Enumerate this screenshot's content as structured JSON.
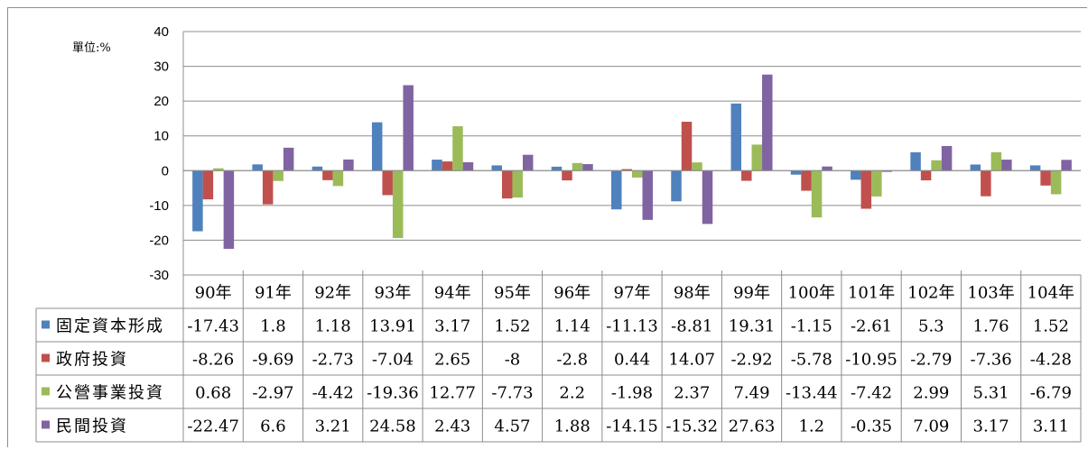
{
  "chart_data": {
    "type": "bar",
    "unit_label": "單位:%",
    "categories": [
      "90年",
      "91年",
      "92年",
      "93年",
      "94年",
      "95年",
      "96年",
      "97年",
      "98年",
      "99年",
      "100年",
      "101年",
      "102年",
      "103年",
      "104年"
    ],
    "ylim": [
      -30,
      40
    ],
    "yticks": [
      "40",
      "30",
      "20",
      "10",
      "0",
      "-10",
      "-20",
      "-30"
    ],
    "ytick_values": [
      40,
      30,
      20,
      10,
      0,
      -10,
      -20,
      -30
    ],
    "grid": true,
    "legend": "data-table-left",
    "series": [
      {
        "name": "固定資本形成",
        "color": "#4f81bd",
        "values": [
          -17.43,
          1.8,
          1.18,
          13.91,
          3.17,
          1.52,
          1.14,
          -11.13,
          -8.81,
          19.31,
          -1.15,
          -2.61,
          5.3,
          1.76,
          1.52
        ],
        "labels": [
          "-17.43",
          "1.8",
          "1.18",
          "13.91",
          "3.17",
          "1.52",
          "1.14",
          "-11.13",
          "-8.81",
          "19.31",
          "-1.15",
          "-2.61",
          "5.3",
          "1.76",
          "1.52"
        ]
      },
      {
        "name": "政府投資",
        "color": "#c0504d",
        "values": [
          -8.26,
          -9.69,
          -2.73,
          -7.04,
          2.65,
          -8,
          -2.8,
          0.44,
          14.07,
          -2.92,
          -5.78,
          -10.95,
          -2.79,
          -7.36,
          -4.28
        ],
        "labels": [
          "-8.26",
          "-9.69",
          "-2.73",
          "-7.04",
          "2.65",
          "-8",
          "-2.8",
          "0.44",
          "14.07",
          "-2.92",
          "-5.78",
          "-10.95",
          "-2.79",
          "-7.36",
          "-4.28"
        ]
      },
      {
        "name": "公營事業投資",
        "color": "#9bbb59",
        "values": [
          0.68,
          -2.97,
          -4.42,
          -19.36,
          12.77,
          -7.73,
          2.2,
          -1.98,
          2.37,
          7.49,
          -13.44,
          -7.42,
          2.99,
          5.31,
          -6.79
        ],
        "labels": [
          "0.68",
          "-2.97",
          "-4.42",
          "-19.36",
          "12.77",
          "-7.73",
          "2.2",
          "-1.98",
          "2.37",
          "7.49",
          "-13.44",
          "-7.42",
          "2.99",
          "5.31",
          "-6.79"
        ]
      },
      {
        "name": "民間投資",
        "color": "#8064a2",
        "values": [
          -22.47,
          6.6,
          3.21,
          24.58,
          2.43,
          4.57,
          1.88,
          -14.15,
          -15.32,
          27.63,
          1.2,
          -0.35,
          7.09,
          3.17,
          3.11
        ],
        "labels": [
          "-22.47",
          "6.6",
          "3.21",
          "24.58",
          "2.43",
          "4.57",
          "1.88",
          "-14.15",
          "-15.32",
          "27.63",
          "1.2",
          "-0.35",
          "7.09",
          "3.17",
          "3.11"
        ]
      }
    ]
  }
}
